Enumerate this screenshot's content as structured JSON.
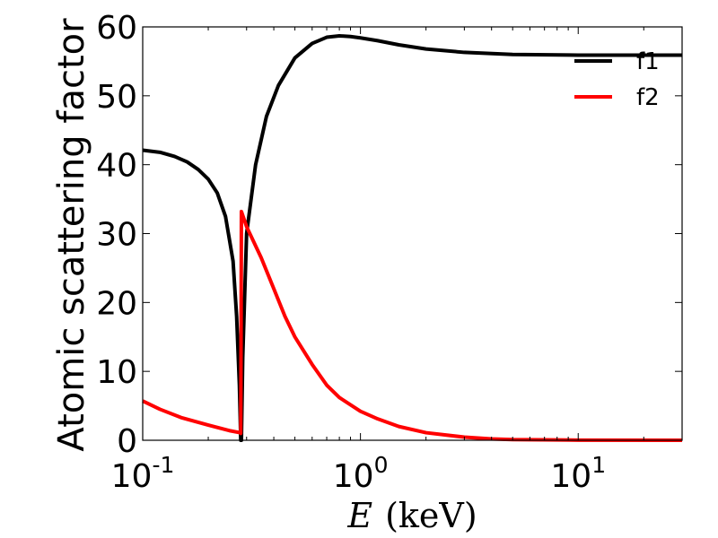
{
  "chart_data": {
    "type": "line",
    "ylabel": "Atomic scattering factor",
    "xlabel_var": "E",
    "xlabel_unit": "(keV)",
    "x_scale": "log",
    "xlim": [
      0.1,
      30
    ],
    "ylim": [
      0,
      60
    ],
    "y_ticks": [
      0,
      10,
      20,
      30,
      40,
      50,
      60
    ],
    "x_ticks": [
      {
        "value": 0.1,
        "base": "10",
        "exp": "-1"
      },
      {
        "value": 1,
        "base": "10",
        "exp": "0"
      },
      {
        "value": 10,
        "base": "10",
        "exp": "1"
      }
    ],
    "grid": false,
    "legend_position": "top-right",
    "series": [
      {
        "name": "f1",
        "color": "#000000",
        "points": [
          [
            0.1,
            42.1
          ],
          [
            0.12,
            41.8
          ],
          [
            0.14,
            41.2
          ],
          [
            0.16,
            40.4
          ],
          [
            0.18,
            39.3
          ],
          [
            0.2,
            37.9
          ],
          [
            0.22,
            35.9
          ],
          [
            0.24,
            32.5
          ],
          [
            0.26,
            26.0
          ],
          [
            0.27,
            18.0
          ],
          [
            0.278,
            8.0
          ],
          [
            0.282,
            0.0
          ],
          [
            0.284,
            0.0
          ],
          [
            0.288,
            12.0
          ],
          [
            0.3,
            30.0
          ],
          [
            0.33,
            40.0
          ],
          [
            0.37,
            47.0
          ],
          [
            0.42,
            51.5
          ],
          [
            0.5,
            55.5
          ],
          [
            0.6,
            57.6
          ],
          [
            0.7,
            58.5
          ],
          [
            0.8,
            58.7
          ],
          [
            0.9,
            58.6
          ],
          [
            1.0,
            58.4
          ],
          [
            1.2,
            58.0
          ],
          [
            1.5,
            57.4
          ],
          [
            2.0,
            56.8
          ],
          [
            3.0,
            56.3
          ],
          [
            5.0,
            56.0
          ],
          [
            10.0,
            55.9
          ],
          [
            20.0,
            55.9
          ],
          [
            30.0,
            55.9
          ]
        ]
      },
      {
        "name": "f2",
        "color": "#ff0000",
        "points": [
          [
            0.1,
            5.7
          ],
          [
            0.12,
            4.5
          ],
          [
            0.15,
            3.3
          ],
          [
            0.2,
            2.2
          ],
          [
            0.25,
            1.4
          ],
          [
            0.28,
            1.1
          ],
          [
            0.282,
            1.0
          ],
          [
            0.284,
            33.2
          ],
          [
            0.3,
            31.0
          ],
          [
            0.35,
            26.5
          ],
          [
            0.4,
            22.0
          ],
          [
            0.45,
            18.0
          ],
          [
            0.5,
            15.0
          ],
          [
            0.6,
            11.0
          ],
          [
            0.7,
            8.0
          ],
          [
            0.8,
            6.2
          ],
          [
            1.0,
            4.2
          ],
          [
            1.2,
            3.1
          ],
          [
            1.5,
            2.0
          ],
          [
            2.0,
            1.1
          ],
          [
            3.0,
            0.45
          ],
          [
            4.0,
            0.2
          ],
          [
            5.0,
            0.1
          ],
          [
            10.0,
            0.02
          ],
          [
            30.0,
            0.0
          ]
        ]
      }
    ]
  }
}
